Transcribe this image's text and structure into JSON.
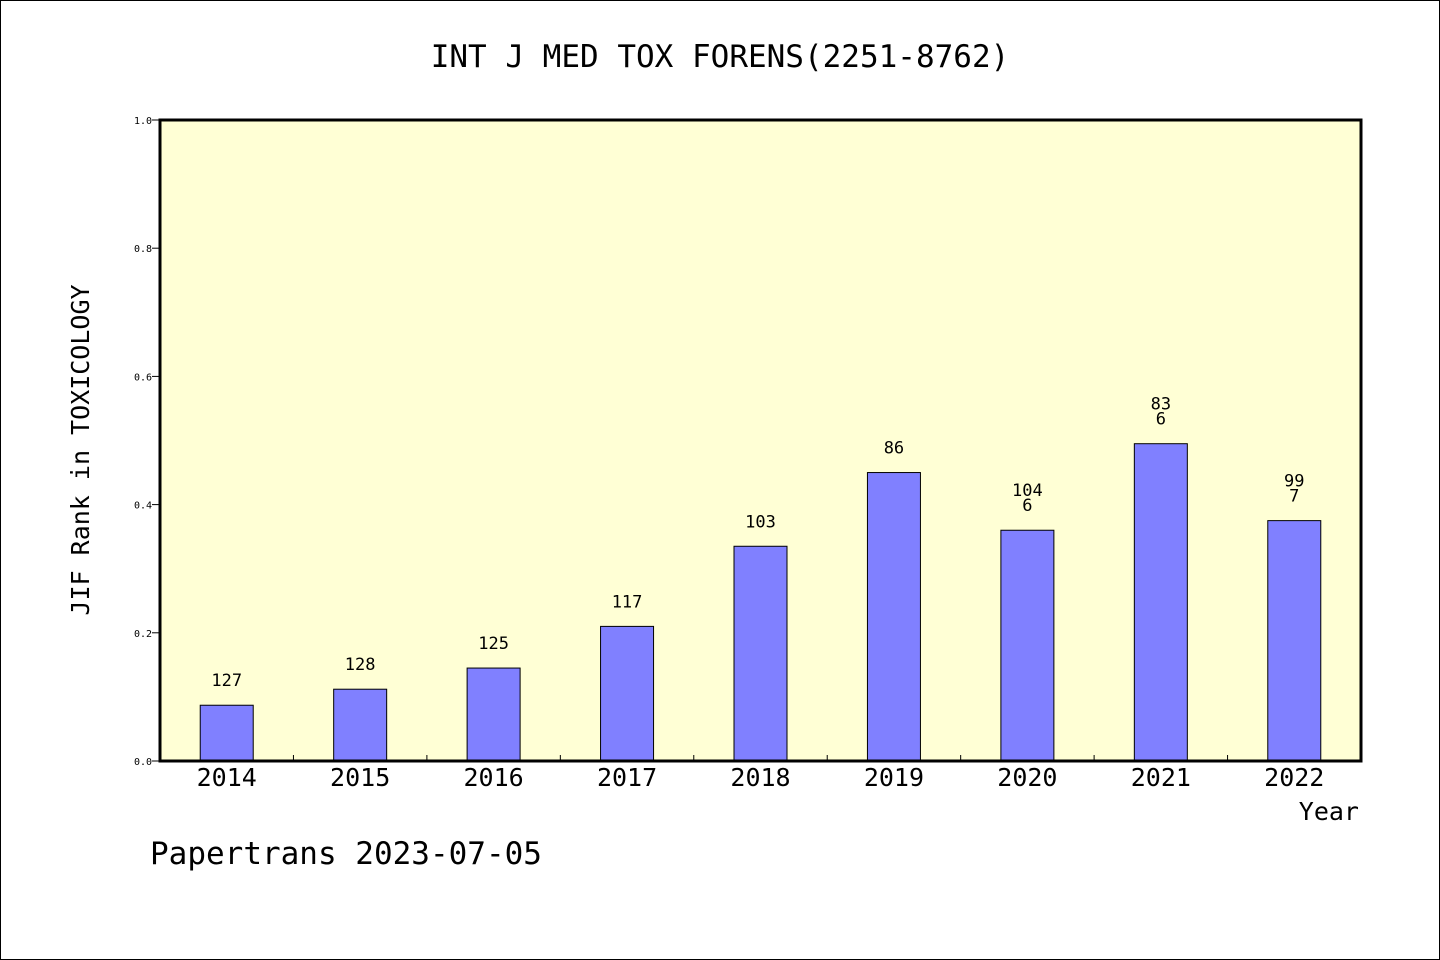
{
  "chart_data": {
    "type": "bar",
    "title": "INT J MED TOX FORENS(2251-8762)",
    "xlabel": "Year",
    "ylabel": "JIF Rank in TOXICOLOGY",
    "ylim": [
      0,
      1.0
    ],
    "yticks": [
      "0.0",
      "0.2",
      "0.4",
      "0.6",
      "0.8",
      "1.0"
    ],
    "grid": false,
    "categories": [
      "2014",
      "2015",
      "2016",
      "2017",
      "2018",
      "2019",
      "2020",
      "2021",
      "2022"
    ],
    "values": [
      0.087,
      0.112,
      0.145,
      0.21,
      0.335,
      0.45,
      0.36,
      0.495,
      0.375
    ],
    "labels": [
      [
        "127"
      ],
      [
        "128"
      ],
      [
        "125"
      ],
      [
        "117"
      ],
      [
        "103"
      ],
      [
        "86"
      ],
      [
        "104",
        "6"
      ],
      [
        "83",
        "6"
      ],
      [
        "99",
        "7"
      ]
    ],
    "colors": {
      "plot_background": "#ffffd5",
      "bar_fill": "#8080ff",
      "bar_stroke": "#000000"
    }
  },
  "footer": {
    "watermark": "Papertrans 2023-07-05"
  }
}
